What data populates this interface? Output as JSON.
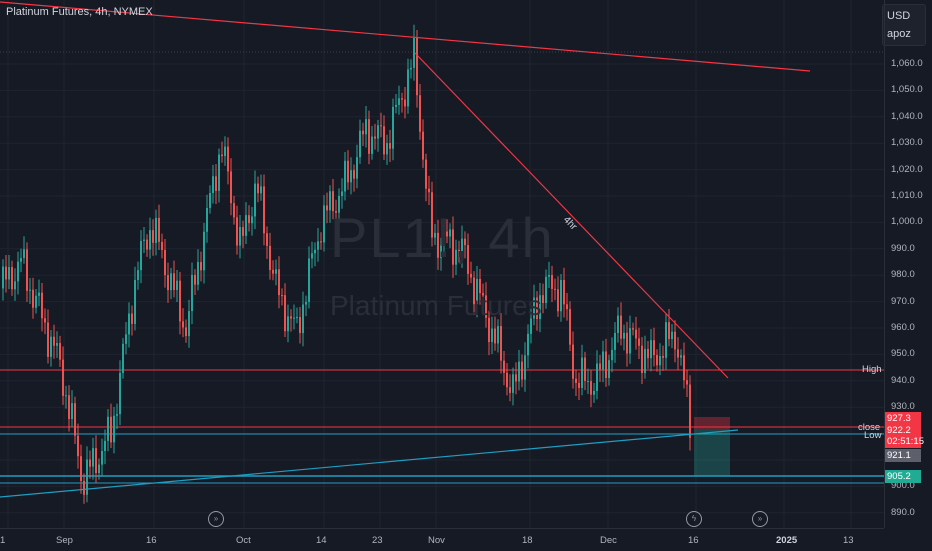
{
  "header": {
    "title": "Platinum Futures, 4h, NYMEX"
  },
  "top_right": {
    "currency": "USD",
    "user": "apoz"
  },
  "watermark": {
    "symbol": "PL1!, 4h",
    "name": "Platinum Futures"
  },
  "y_ticks": [
    "1,060.0",
    "1,050.0",
    "1,040.0",
    "1,030.0",
    "1,020.0",
    "1,010.0",
    "1,000.0",
    "990.0",
    "980.0",
    "970.0",
    "960.0",
    "950.0",
    "940.0",
    "930.0",
    "920.0",
    "910.0",
    "900.0",
    "890.0"
  ],
  "x_ticks": [
    "1",
    "Sep",
    "16",
    "Oct",
    "14",
    "23",
    "Nov",
    "18",
    "Dec",
    "16",
    "2025",
    "13"
  ],
  "drawing_labels": {
    "trend": "4hr",
    "high": "High",
    "close": "close",
    "low": "Low"
  },
  "price_boxes": {
    "p1": "927.3",
    "p2": "922.2",
    "countdown": "02:51:15",
    "p3": "921.1",
    "p4": "905.2"
  },
  "colors": {
    "up": "#26a69a",
    "down": "#ef5350",
    "trend": "#f23645",
    "support": "#1e9ec2",
    "bg": "#161a25"
  },
  "chart_data": {
    "type": "line",
    "title": "Platinum Futures, 4h, NYMEX",
    "xlabel": "",
    "ylabel": "",
    "ylim": [
      890,
      1065
    ],
    "x": [
      "1",
      "Sep",
      "16",
      "Oct",
      "14",
      "23",
      "Nov",
      "18",
      "Dec",
      "16"
    ],
    "series": [
      {
        "name": "",
        "values": [
          975,
          920,
          1005,
          1020,
          985,
          1060,
          985,
          935,
          955,
          921
        ]
      }
    ],
    "levels": {
      "High": 945,
      "close": 922,
      "Low": 920,
      "low2": 905
    }
  }
}
